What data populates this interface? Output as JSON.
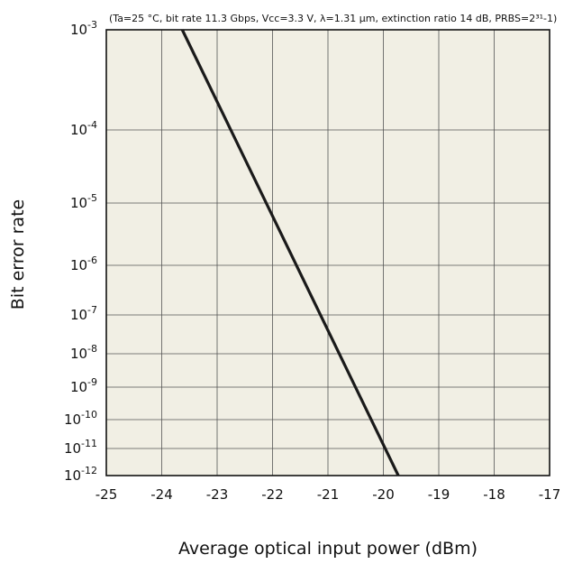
{
  "chart_data": {
    "type": "line",
    "condition_note": "(Ta=25 °C, bit rate 11.3 Gbps, Vcc=3.3 V, λ=1.31 μm, extinction ratio 14 dB, PRBS=2³¹-1)",
    "xlabel": "Average optical input power (dBm)",
    "ylabel": "Bit error rate",
    "xlim": [
      -25,
      -17
    ],
    "ylim": [
      1e-12,
      0.001
    ],
    "y_scale": "log",
    "x_ticks": [
      "-25",
      "-24",
      "-23",
      "-22",
      "-21",
      "-20",
      "-19",
      "-18",
      "-17"
    ],
    "y_ticks": [
      {
        "base": "10",
        "exp": "-3"
      },
      {
        "base": "10",
        "exp": "-4"
      },
      {
        "base": "10",
        "exp": "-5"
      },
      {
        "base": "10",
        "exp": "-6"
      },
      {
        "base": "10",
        "exp": "-7"
      },
      {
        "base": "10",
        "exp": "-8"
      },
      {
        "base": "10",
        "exp": "-9"
      },
      {
        "base": "10",
        "exp": "-10"
      },
      {
        "base": "10",
        "exp": "-11"
      },
      {
        "base": "10",
        "exp": "-12"
      }
    ],
    "grid": true,
    "background_color": "#f1efe4",
    "line_color": "#1a1a1a",
    "series": [
      {
        "values": [
          {
            "x": -23.63,
            "y": 0.001
          },
          {
            "x": -19.73,
            "y": 1e-12
          }
        ]
      }
    ]
  }
}
